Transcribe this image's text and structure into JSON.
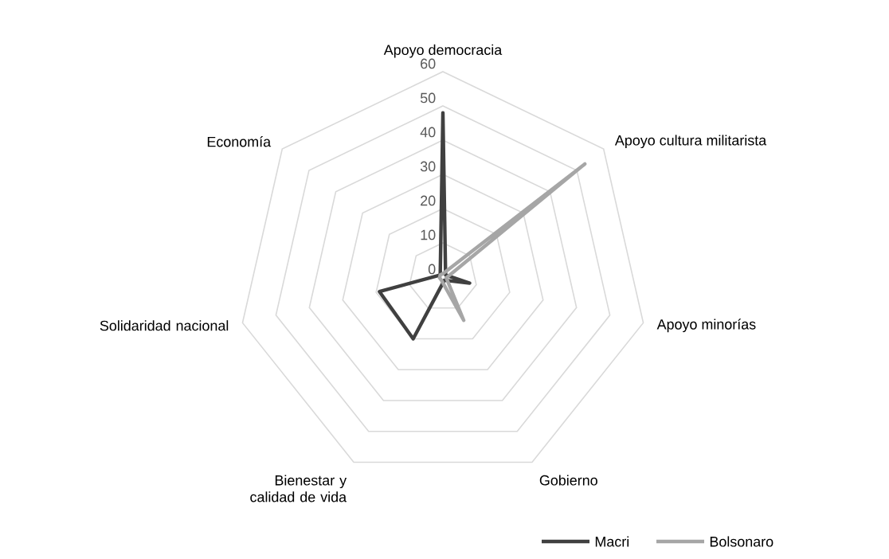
{
  "chart_data": {
    "type": "radar",
    "categories": [
      "Apoyo democracia",
      "Apoyo cultura militarista",
      "Apoyo minorías",
      "Gobierno",
      "Bienestar y calidad de vida",
      "Solidaridad nacional",
      "Economía"
    ],
    "series": [
      {
        "name": "Macri",
        "color": "#404040",
        "values": [
          48,
          1,
          8,
          1,
          20,
          19,
          1
        ]
      },
      {
        "name": "Bolsonaro",
        "color": "#a6a6a6",
        "values": [
          1,
          53,
          1,
          14,
          1,
          1,
          1
        ]
      }
    ],
    "ylim": [
      0,
      60
    ],
    "yticks": [
      0,
      10,
      20,
      30,
      40,
      50,
      60
    ],
    "grid": true,
    "legend": "bottom right"
  }
}
